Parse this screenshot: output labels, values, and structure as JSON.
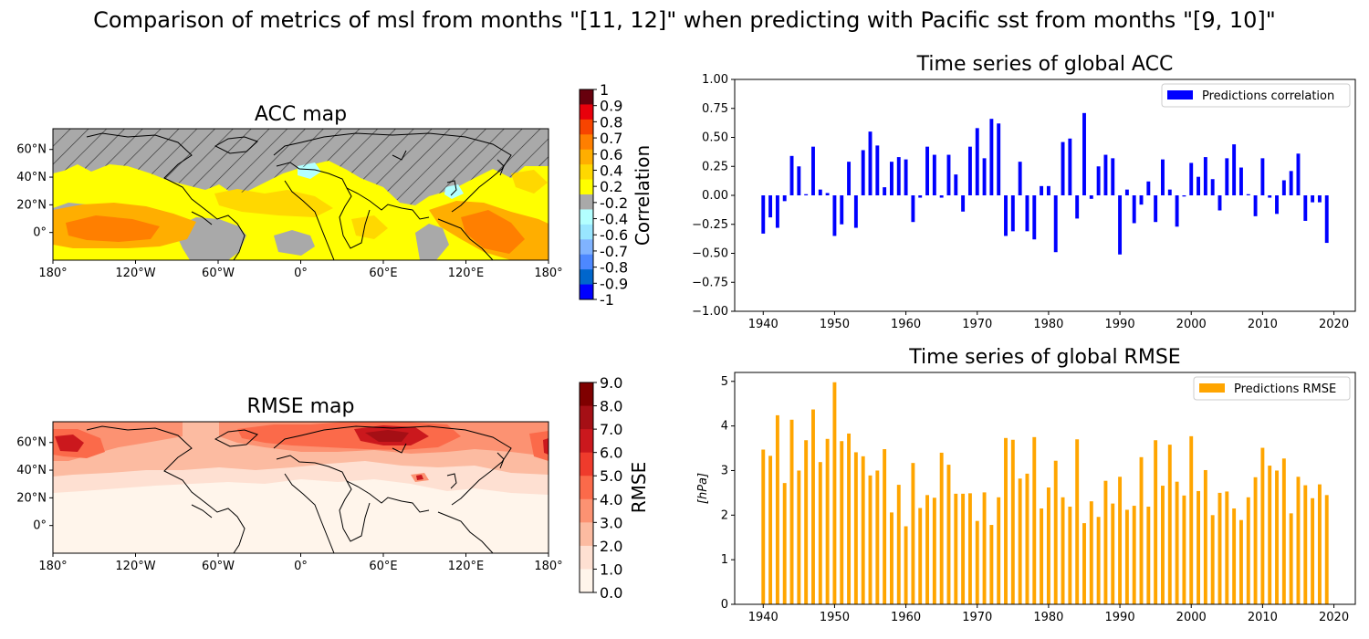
{
  "suptitle": "Comparison of metrics of msl from months \"[11, 12]\"  when predicting with Pacific sst from months \"[9, 10]\"",
  "colors": {
    "acc_bar": "#0000ff",
    "rmse_bar": "#ffa500",
    "acc_land_shade": "#a9a9a9",
    "map_outline": "#000000"
  },
  "maps": {
    "lon_ticks": [
      "180°",
      "120°W",
      "60°W",
      "0°",
      "60°E",
      "120°E",
      "180°"
    ],
    "lat_ticks": [
      "60°N",
      "40°N",
      "20°N",
      "0°"
    ],
    "acc": {
      "title": "ACC map",
      "colorbar_label": "Correlation",
      "colorbar_ticks": [
        "1",
        "0.9",
        "0.8",
        "0.7",
        "0.6",
        "0.4",
        "0.2",
        "-0.2",
        "-0.4",
        "-0.6",
        "-0.7",
        "-0.8",
        "-0.9",
        "-1"
      ],
      "colorbar_colors": [
        "#67000d",
        "#e8000b",
        "#f74400",
        "#ff7f00",
        "#ffae00",
        "#ffd800",
        "#ffff00",
        "#a9a9a9",
        "#b3ffff",
        "#99e6ff",
        "#80b3ff",
        "#4d88ff",
        "#0066cc",
        "#0000ff"
      ]
    },
    "rmse": {
      "title": "RMSE map",
      "colorbar_label": "RMSE",
      "colorbar_ticks": [
        "9.0",
        "8.0",
        "7.0",
        "6.0",
        "5.0",
        "4.0",
        "3.0",
        "2.0",
        "1.0",
        "0.0"
      ],
      "colorbar_colors": [
        "#7f0000",
        "#a50f15",
        "#cb181d",
        "#ef3b2c",
        "#fb6a4a",
        "#fc9272",
        "#fcbba1",
        "#fee0d2",
        "#fff5eb"
      ]
    }
  },
  "chart_data": [
    {
      "type": "bar",
      "title": "Time series of global ACC",
      "xlabel": "",
      "ylabel": "",
      "xlim": [
        1936,
        2023
      ],
      "ylim": [
        -1.0,
        1.0
      ],
      "x_ticks": [
        "1940",
        "1950",
        "1960",
        "1970",
        "1980",
        "1990",
        "2000",
        "2010",
        "2020"
      ],
      "y_ticks": [
        "1.00",
        "0.75",
        "0.50",
        "0.25",
        "0.00",
        "−0.25",
        "−0.50",
        "−0.75",
        "−1.00"
      ],
      "legend": "top-right",
      "series": [
        {
          "name": "Predictions correlation",
          "x": [
            1940,
            1941,
            1942,
            1943,
            1944,
            1945,
            1946,
            1947,
            1948,
            1949,
            1950,
            1951,
            1952,
            1953,
            1954,
            1955,
            1956,
            1957,
            1958,
            1959,
            1960,
            1961,
            1962,
            1963,
            1964,
            1965,
            1966,
            1967,
            1968,
            1969,
            1970,
            1971,
            1972,
            1973,
            1974,
            1975,
            1976,
            1977,
            1978,
            1979,
            1980,
            1981,
            1982,
            1983,
            1984,
            1985,
            1986,
            1987,
            1988,
            1989,
            1990,
            1991,
            1992,
            1993,
            1994,
            1995,
            1996,
            1997,
            1998,
            1999,
            2000,
            2001,
            2002,
            2003,
            2004,
            2005,
            2006,
            2007,
            2008,
            2009,
            2010,
            2011,
            2012,
            2013,
            2014,
            2015,
            2016,
            2017,
            2018,
            2019
          ],
          "values": [
            -0.33,
            -0.19,
            -0.28,
            -0.05,
            0.34,
            0.25,
            0.01,
            0.42,
            0.05,
            0.02,
            -0.35,
            -0.25,
            0.29,
            -0.28,
            0.39,
            0.55,
            0.43,
            0.07,
            0.29,
            0.33,
            0.31,
            -0.23,
            -0.02,
            0.42,
            0.35,
            -0.02,
            0.35,
            0.18,
            -0.14,
            0.42,
            0.58,
            0.32,
            0.66,
            0.62,
            -0.35,
            -0.31,
            0.29,
            -0.31,
            -0.38,
            0.08,
            0.08,
            -0.49,
            0.46,
            0.49,
            -0.2,
            0.71,
            -0.03,
            0.25,
            0.35,
            0.32,
            -0.51,
            0.05,
            -0.24,
            -0.08,
            0.12,
            -0.23,
            0.31,
            0.05,
            -0.27,
            -0.01,
            0.28,
            0.16,
            0.33,
            0.14,
            -0.13,
            0.32,
            0.44,
            0.24,
            0.01,
            -0.18,
            0.32,
            -0.02,
            -0.16,
            0.13,
            0.21,
            0.36,
            -0.22,
            -0.06,
            -0.06,
            -0.41
          ]
        }
      ]
    },
    {
      "type": "bar",
      "title": "Time series of global RMSE",
      "xlabel": "",
      "ylabel": "[hPa]",
      "xlim": [
        1936,
        2023
      ],
      "ylim": [
        0,
        5.2
      ],
      "x_ticks": [
        "1940",
        "1950",
        "1960",
        "1970",
        "1980",
        "1990",
        "2000",
        "2010",
        "2020"
      ],
      "y_ticks": [
        "5",
        "4",
        "3",
        "2",
        "1",
        "0"
      ],
      "legend": "top-right",
      "series": [
        {
          "name": "Predictions RMSE",
          "x": [
            1940,
            1941,
            1942,
            1943,
            1944,
            1945,
            1946,
            1947,
            1948,
            1949,
            1950,
            1951,
            1952,
            1953,
            1954,
            1955,
            1956,
            1957,
            1958,
            1959,
            1960,
            1961,
            1962,
            1963,
            1964,
            1965,
            1966,
            1967,
            1968,
            1969,
            1970,
            1971,
            1972,
            1973,
            1974,
            1975,
            1976,
            1977,
            1978,
            1979,
            1980,
            1981,
            1982,
            1983,
            1984,
            1985,
            1986,
            1987,
            1988,
            1989,
            1990,
            1991,
            1992,
            1993,
            1994,
            1995,
            1996,
            1997,
            1998,
            1999,
            2000,
            2001,
            2002,
            2003,
            2004,
            2005,
            2006,
            2007,
            2008,
            2009,
            2010,
            2011,
            2012,
            2013,
            2014,
            2015,
            2016,
            2017,
            2018,
            2019
          ],
          "values": [
            3.47,
            3.33,
            4.24,
            2.72,
            4.14,
            3.0,
            3.68,
            4.37,
            3.19,
            3.71,
            4.98,
            3.66,
            3.83,
            3.41,
            3.32,
            2.89,
            3.0,
            3.48,
            2.06,
            2.68,
            1.75,
            3.17,
            2.16,
            2.45,
            2.39,
            3.4,
            3.13,
            2.48,
            2.48,
            2.49,
            1.87,
            2.51,
            1.78,
            2.4,
            3.73,
            3.69,
            2.82,
            2.93,
            3.75,
            2.15,
            2.62,
            3.22,
            2.4,
            2.19,
            3.7,
            1.82,
            2.31,
            1.96,
            2.77,
            2.26,
            2.86,
            2.12,
            2.21,
            3.3,
            2.19,
            3.68,
            2.66,
            3.58,
            2.75,
            2.44,
            3.77,
            2.54,
            3.01,
            2.0,
            2.5,
            2.53,
            2.15,
            1.89,
            2.4,
            2.85,
            3.51,
            3.11,
            3.0,
            3.27,
            2.04,
            2.86,
            2.67,
            2.38,
            2.69,
            2.45
          ]
        }
      ]
    }
  ]
}
